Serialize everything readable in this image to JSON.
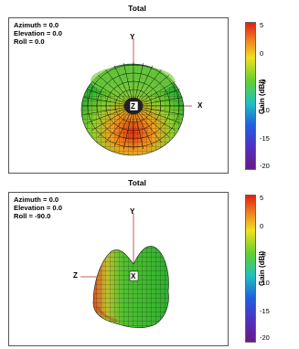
{
  "chart_data": [
    {
      "type": "other",
      "title": "Total",
      "orientation": {
        "azimuth": "Azimuth = 0.0",
        "elevation": "Elevation = 0.0",
        "roll": "Roll = 0.0"
      },
      "axes": {
        "x": "X",
        "y": "Y",
        "z": "Z"
      },
      "colorbar": {
        "label": "Gain (dBi)",
        "ticks": [
          "5",
          "0",
          "-5",
          "-10",
          "-15",
          "-20"
        ],
        "range": [
          -22,
          6
        ]
      }
    },
    {
      "type": "other",
      "title": "Total",
      "orientation": {
        "azimuth": "Azimuth = 0.0",
        "elevation": "Elevation = 0.0",
        "roll": "Roll = -90.0"
      },
      "axes": {
        "x": "X",
        "y": "Y",
        "z": "Z"
      },
      "colorbar": {
        "label": "Gain (dBi)",
        "ticks": [
          "5",
          "0",
          "-5",
          "-10",
          "-15",
          "-20"
        ],
        "range": [
          -22,
          6
        ]
      }
    }
  ],
  "colors": {
    "high": "#e03010",
    "mid": "#f0d020",
    "green": "#30c030",
    "low": "#4040d0",
    "lowest": "#6a2090"
  }
}
